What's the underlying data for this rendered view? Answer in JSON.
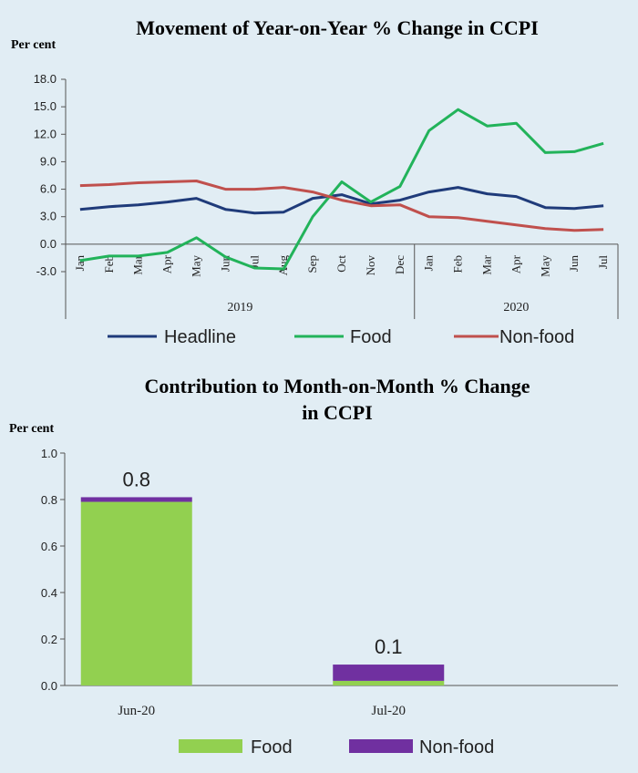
{
  "chart_data": [
    {
      "type": "line",
      "title": "Movement of Year-on-Year % Change in CCPI",
      "ylabel": "Per cent",
      "ylim": [
        -3.0,
        18.0
      ],
      "yticks": [
        "18.0",
        "15.0",
        "12.0",
        "9.0",
        "6.0",
        "3.0",
        "0.0",
        "-3.0"
      ],
      "categories": [
        "Jan",
        "Feb",
        "Mar",
        "Apr",
        "May",
        "Jun",
        "Jul",
        "Aug",
        "Sep",
        "Oct",
        "Nov",
        "Dec",
        "Jan",
        "Feb",
        "Mar",
        "Apr",
        "May",
        "Jun",
        "Jul"
      ],
      "year_groups": [
        {
          "label": "2019",
          "count": 12
        },
        {
          "label": "2020",
          "count": 7
        }
      ],
      "series": [
        {
          "name": "Headline",
          "color": "#1f3b7a",
          "values": [
            3.8,
            4.1,
            4.3,
            4.6,
            5.0,
            3.8,
            3.4,
            3.5,
            5.0,
            5.4,
            4.4,
            4.8,
            5.7,
            6.2,
            5.5,
            5.2,
            4.0,
            3.9,
            4.2
          ]
        },
        {
          "name": "Food",
          "color": "#22b35a",
          "values": [
            -1.8,
            -1.3,
            -1.3,
            -0.9,
            0.7,
            -1.4,
            -2.6,
            -2.7,
            3.0,
            6.8,
            4.6,
            6.3,
            12.4,
            14.7,
            12.9,
            13.2,
            10.0,
            10.1,
            11.0
          ]
        },
        {
          "name": "Non-food",
          "color": "#c0504d",
          "values": [
            6.4,
            6.5,
            6.7,
            6.8,
            6.9,
            6.0,
            6.0,
            6.2,
            5.7,
            4.8,
            4.2,
            4.3,
            3.0,
            2.9,
            2.5,
            2.1,
            1.7,
            1.5,
            1.6
          ]
        }
      ]
    },
    {
      "type": "bar",
      "stacked": true,
      "title_lines": [
        "Contribution to Month-on-Month % Change",
        "in CCPI"
      ],
      "ylabel": "Per cent",
      "ylim": [
        0.0,
        1.0
      ],
      "yticks": [
        "1.0",
        "0.8",
        "0.6",
        "0.4",
        "0.2",
        "0.0"
      ],
      "categories": [
        "Jun-20",
        "Jul-20"
      ],
      "totals_labels": [
        "0.8",
        "0.1"
      ],
      "totals": [
        0.81,
        0.09
      ],
      "series": [
        {
          "name": "Food",
          "color": "#92d050",
          "values": [
            0.79,
            0.02
          ]
        },
        {
          "name": "Non-food",
          "color": "#7030a0",
          "values": [
            0.02,
            0.07
          ]
        }
      ]
    }
  ]
}
